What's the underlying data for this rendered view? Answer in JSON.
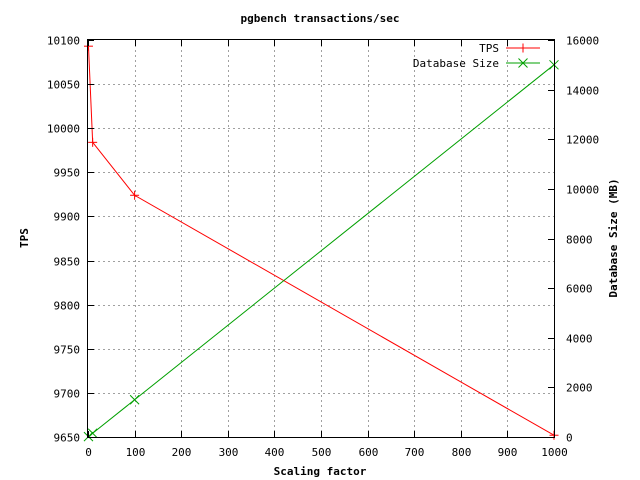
{
  "chart_data": {
    "type": "line",
    "title": "pgbench transactions/sec",
    "xlabel": "Scaling factor",
    "ylabel": "TPS",
    "y2label": "Database Size (MB)",
    "xlim": [
      0,
      1000
    ],
    "ylim": [
      9650,
      10100
    ],
    "y2lim": [
      0,
      16000
    ],
    "xticks": [
      0,
      100,
      200,
      300,
      400,
      500,
      600,
      700,
      800,
      900,
      1000
    ],
    "yticks": [
      9650,
      9700,
      9750,
      9800,
      9850,
      9900,
      9950,
      10000,
      10050,
      10100
    ],
    "y2ticks": [
      0,
      2000,
      4000,
      6000,
      8000,
      10000,
      12000,
      14000,
      16000
    ],
    "grid": true,
    "legend_position": "top-right",
    "series": [
      {
        "name": "TPS",
        "axis": "y",
        "color": "#ff0000",
        "marker": "plus",
        "x": [
          1,
          10,
          100,
          1000
        ],
        "y": [
          10093,
          9984,
          9924,
          9652
        ]
      },
      {
        "name": "Database Size",
        "axis": "y2",
        "color": "#00a000",
        "marker": "cross",
        "x": [
          1,
          10,
          100,
          1000
        ],
        "y": [
          15,
          150,
          1500,
          15000
        ]
      }
    ]
  }
}
